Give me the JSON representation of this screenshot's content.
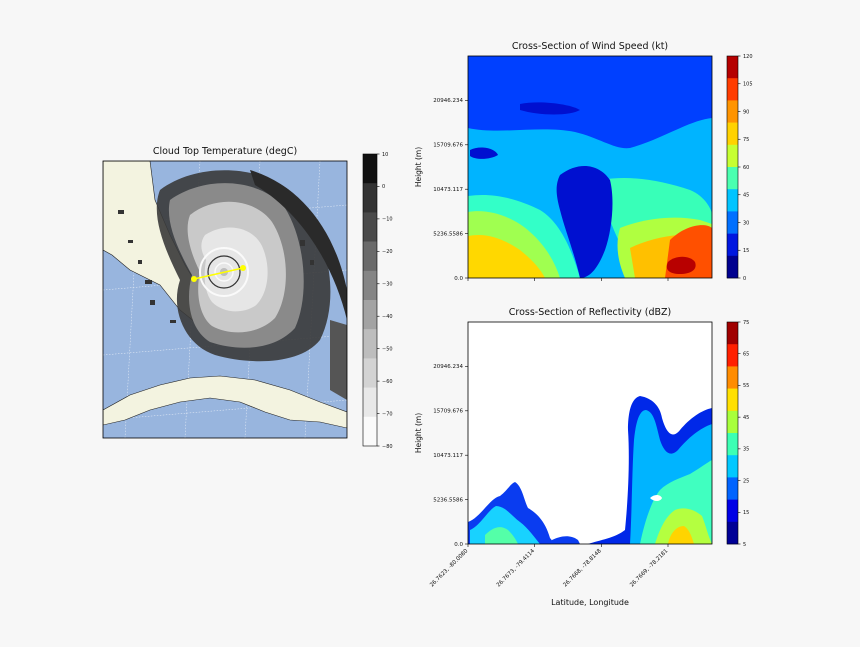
{
  "colors": {
    "background": "#f7f7f7",
    "ocean": "#98b5de",
    "land": "#f3f3e0",
    "track": "#ffff00"
  },
  "chart_data": [
    {
      "type": "heatmap",
      "title": "Cloud Top Temperature (degC)",
      "kind": "map",
      "colorbar": {
        "ticks": [
          "10",
          "0",
          "−10",
          "−20",
          "−30",
          "−40",
          "−50",
          "−60",
          "−70",
          "−80"
        ],
        "levels": [
          10,
          0,
          -10,
          -20,
          -30,
          -40,
          -50,
          -60,
          -70,
          -80
        ],
        "colors": [
          "#111111",
          "#333333",
          "#4a4a4a",
          "#6a6a6a",
          "#858585",
          "#a3a3a3",
          "#bdbdbd",
          "#d3d3d3",
          "#e8e8e8",
          "#fafafa"
        ]
      },
      "cross_section_line": {
        "start": [
          26.7623,
          -80.008
        ],
        "end": [
          26.7669,
          -78.2181
        ],
        "color": "#ffff00"
      }
    },
    {
      "type": "heatmap",
      "title": "Cross-Section of Wind Speed (kt)",
      "ylabel": "Height (m)",
      "yticks": [
        "0.0",
        "5236.5586",
        "10473.117",
        "15709.676",
        "20946.234"
      ],
      "ytick_values": [
        0,
        5236.5586,
        10473.117,
        15709.676,
        20946.234
      ],
      "ylim": [
        0,
        26182.79
      ],
      "colorbar": {
        "ticks": [
          "120",
          "105",
          "90",
          "75",
          "60",
          "45",
          "30",
          "15",
          "0"
        ],
        "colors": [
          "#b50000",
          "#ff3c00",
          "#ff9400",
          "#ffd200",
          "#c6ff32",
          "#4affb0",
          "#00c4ff",
          "#0070ff",
          "#0017e0",
          "#00008f"
        ]
      }
    },
    {
      "type": "heatmap",
      "title": "Cross-Section of Reflectivity (dBZ)",
      "ylabel": "Height (m)",
      "xlabel": "Latitude, Longitude",
      "yticks": [
        "0.0",
        "5236.5586",
        "10473.117",
        "15709.676",
        "20946.234"
      ],
      "ytick_values": [
        0,
        5236.5586,
        10473.117,
        15709.676,
        20946.234
      ],
      "ylim": [
        0,
        26182.79
      ],
      "xticks": [
        "26.7623, -80.0080",
        "26.7673, -79.4114",
        "26.7668, -78.8148",
        "26.7669, -78.2181"
      ],
      "colorbar": {
        "ticks": [
          "75",
          "65",
          "55",
          "45",
          "35",
          "25",
          "15",
          "5"
        ],
        "colors": [
          "#a00000",
          "#ff2000",
          "#ff8c00",
          "#ffe000",
          "#a8ff3c",
          "#3cffb4",
          "#00c8ff",
          "#0064ff",
          "#0000e6",
          "#000096"
        ]
      }
    }
  ]
}
